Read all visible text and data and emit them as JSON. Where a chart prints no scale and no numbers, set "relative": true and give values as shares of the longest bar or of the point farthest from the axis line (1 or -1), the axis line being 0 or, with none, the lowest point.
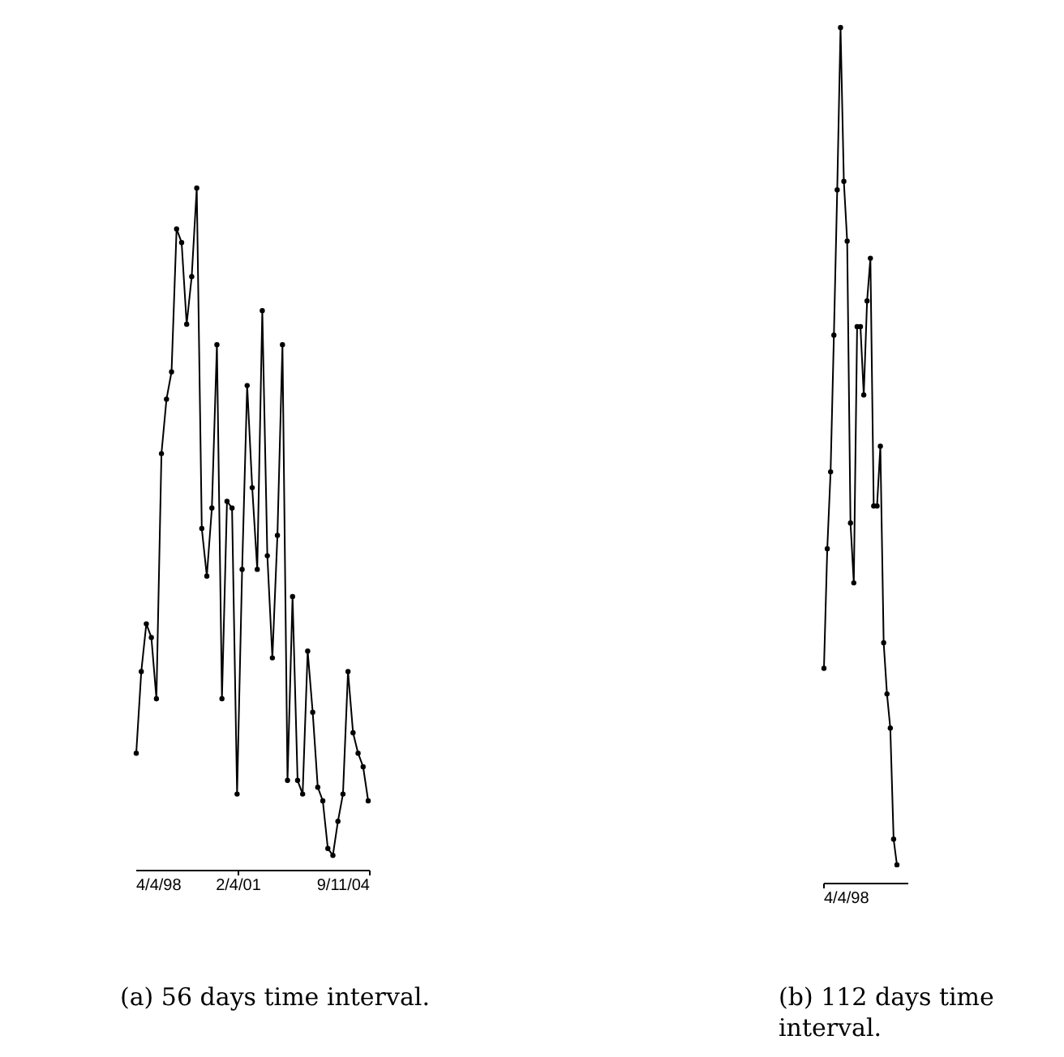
{
  "chart_data": [
    {
      "type": "line",
      "title": "(a) 56 days time interval.",
      "relative": true,
      "marker": "circle",
      "annotations": [
        "4/4/98",
        "2/4/01",
        "9/11/04"
      ],
      "categories": [
        null,
        null,
        null,
        null,
        null,
        null,
        null,
        null,
        null,
        null,
        null,
        null,
        null,
        null,
        null,
        null,
        null,
        null,
        null,
        null,
        null,
        null,
        null,
        null,
        null,
        null,
        null,
        null,
        null,
        null,
        null,
        null,
        null,
        null,
        null,
        null,
        null,
        null,
        null,
        null,
        null,
        null,
        null,
        null,
        null,
        null,
        null
      ],
      "series": [
        {
          "color": "#000000",
          "values": [
            0.17,
            0.29,
            0.36,
            0.34,
            0.25,
            0.61,
            0.69,
            0.73,
            0.94,
            0.92,
            0.8,
            0.87,
            1.0,
            0.5,
            0.43,
            0.53,
            0.77,
            0.25,
            0.54,
            0.53,
            0.11,
            0.44,
            0.71,
            0.56,
            0.44,
            0.82,
            0.46,
            0.31,
            0.49,
            0.77,
            0.13,
            0.4,
            0.13,
            0.11,
            0.32,
            0.23,
            0.12,
            0.1,
            0.03,
            0.02,
            0.07,
            0.11,
            0.29,
            0.2,
            0.17,
            0.15,
            0.1
          ]
        }
      ]
    },
    {
      "type": "line",
      "title": "(b) 112 days time interval.",
      "relative": true,
      "marker": "circle",
      "annotations": [
        "4/4/98"
      ],
      "categories": [
        null,
        null,
        null,
        null,
        null,
        null,
        null,
        null,
        null,
        null,
        null,
        null,
        null,
        null,
        null,
        null,
        null,
        null,
        null,
        null,
        null,
        null,
        null
      ],
      "series": [
        {
          "color": "#000000",
          "values": [
            0.25,
            0.39,
            0.48,
            0.64,
            0.81,
            1.0,
            0.82,
            0.75,
            0.42,
            0.35,
            0.65,
            0.65,
            0.57,
            0.68,
            0.73,
            0.44,
            0.44,
            0.51,
            0.28,
            0.22,
            0.18,
            0.05,
            0.02
          ]
        }
      ]
    }
  ]
}
